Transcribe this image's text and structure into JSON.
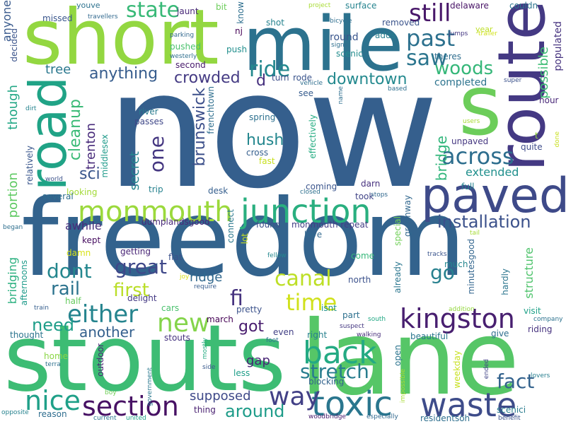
{
  "words": [
    {
      "text": "now",
      "c": "#355f8d"
    },
    {
      "text": "freedom",
      "c": "#33638d"
    },
    {
      "text": "stouts",
      "c": "#3dbc74"
    },
    {
      "text": "lane",
      "c": "#56c667"
    },
    {
      "text": "short",
      "c": "#93d741"
    },
    {
      "text": "mile",
      "c": "#2c728e"
    },
    {
      "text": "s",
      "c": "#6ccd5a"
    },
    {
      "text": "route",
      "c": "#443983"
    },
    {
      "text": "road",
      "c": "#20a386"
    },
    {
      "text": "paved",
      "c": "#3e4a89"
    },
    {
      "text": "junction",
      "c": "#29af7f"
    },
    {
      "text": "monmouth",
      "c": "#9bd93c"
    },
    {
      "text": "kingston",
      "c": "#481f70"
    },
    {
      "text": "toxic",
      "c": "#2a768e"
    },
    {
      "text": "waste",
      "c": "#3e4c8a"
    },
    {
      "text": "section",
      "c": "#471164"
    },
    {
      "text": "back",
      "c": "#24aa83"
    },
    {
      "text": "way",
      "c": "#424086"
    },
    {
      "text": "either",
      "c": "#25848e"
    },
    {
      "text": "nice",
      "c": "#1fa088"
    },
    {
      "text": "across",
      "c": "#2e6e8e"
    },
    {
      "text": "installation",
      "c": "#3b518b"
    },
    {
      "text": "new",
      "c": "#84d44b"
    },
    {
      "text": "time",
      "c": "#d0e11c"
    },
    {
      "text": "canal",
      "c": "#bddf26"
    },
    {
      "text": "still",
      "c": "#481769"
    },
    {
      "text": "state",
      "c": "#38b977"
    },
    {
      "text": "ride",
      "c": "#23888e"
    },
    {
      "text": "past",
      "c": "#2d718e"
    },
    {
      "text": "woods",
      "c": "#35b779"
    },
    {
      "text": "saw",
      "c": "#2b758e"
    },
    {
      "text": "stretch",
      "c": "#287d8e"
    },
    {
      "text": "dont",
      "c": "#24878e"
    },
    {
      "text": "rail",
      "c": "#2c738e"
    },
    {
      "text": "great",
      "c": "#3f4889"
    },
    {
      "text": "first",
      "c": "#bade28"
    },
    {
      "text": "go",
      "c": "#27808e"
    },
    {
      "text": "fi",
      "c": "#46337f"
    },
    {
      "text": "fact",
      "c": "#33628d"
    },
    {
      "text": "around",
      "c": "#1e9c89"
    },
    {
      "text": "need",
      "c": "#1f9e89"
    },
    {
      "text": "another",
      "c": "#34608d"
    },
    {
      "text": "got",
      "c": "#481c6e"
    },
    {
      "text": "downtown",
      "c": "#23898e"
    },
    {
      "text": "anything",
      "c": "#365c8d"
    },
    {
      "text": "crowded",
      "c": "#443a83"
    },
    {
      "text": "tree",
      "c": "#2a778e"
    },
    {
      "text": "hush",
      "c": "#24878e"
    },
    {
      "text": "one",
      "c": "#453781"
    },
    {
      "text": "sci",
      "c": "#39568c"
    },
    {
      "text": "supposed",
      "c": "#3e4989"
    },
    {
      "text": "gap",
      "c": "#482475"
    },
    {
      "text": "ridge",
      "c": "#31688e"
    },
    {
      "text": "awhile",
      "c": "#472d7b"
    },
    {
      "text": "extended",
      "c": "#21908d"
    },
    {
      "text": "completed",
      "c": "#2c738e"
    },
    {
      "text": "anyone",
      "c": "#38598c"
    },
    {
      "text": "youve",
      "c": "#2c718e"
    },
    {
      "text": "travellers",
      "c": "#31688e"
    },
    {
      "text": "surface",
      "c": "#25838e"
    },
    {
      "text": "delaware",
      "c": "#481467"
    },
    {
      "text": "couldn",
      "c": "#2b758e"
    },
    {
      "text": "bicycle",
      "c": "#2e6e8e"
    },
    {
      "text": "removed",
      "c": "#3a538b"
    },
    {
      "text": "adds",
      "c": "#277f8e"
    },
    {
      "text": "round",
      "c": "#39558c"
    },
    {
      "text": "jaunt",
      "c": "#482878"
    },
    {
      "text": "bit",
      "c": "#6ccd5a"
    },
    {
      "text": "nj",
      "c": "#440154"
    },
    {
      "text": "shot",
      "c": "#26828e"
    },
    {
      "text": "push",
      "c": "#218f8d"
    },
    {
      "text": "pushed",
      "c": "#4ac16d"
    },
    {
      "text": "second",
      "c": "#481a6c"
    },
    {
      "text": "turn",
      "c": "#3d4e8a"
    },
    {
      "text": "rode",
      "c": "#3a548c"
    },
    {
      "text": "scenic",
      "c": "#228c8d"
    },
    {
      "text": "theres",
      "c": "#2e6d8e"
    },
    {
      "text": "jumps",
      "c": "#453882"
    },
    {
      "text": "year",
      "c": "#bddf26"
    },
    {
      "text": "trailer",
      "c": "#d2e21b"
    },
    {
      "text": "populated",
      "c": "#46337f"
    },
    {
      "text": "possible",
      "c": "#3dbc74"
    },
    {
      "text": "missed",
      "c": "#39568c"
    },
    {
      "text": "decided",
      "c": "#3a538b"
    },
    {
      "text": "though",
      "c": "#22a785"
    },
    {
      "text": "portion",
      "c": "#5ec962"
    },
    {
      "text": "cleanup",
      "c": "#3aba76"
    },
    {
      "text": "trenton",
      "c": "#472a7a"
    },
    {
      "text": "brunswick",
      "c": "#3c4f8a"
    },
    {
      "text": "secret",
      "c": "#25848e"
    },
    {
      "text": "bridge",
      "c": "#30b57a"
    },
    {
      "text": "unpaved",
      "c": "#453781"
    },
    {
      "text": "full",
      "c": "#25838e"
    },
    {
      "text": "quite",
      "c": "#3e4c8a"
    },
    {
      "text": "hour",
      "c": "#482677"
    },
    {
      "text": "river",
      "c": "#297b8e"
    },
    {
      "text": "passes",
      "c": "#3f4788"
    },
    {
      "text": "spring",
      "c": "#2d708e"
    },
    {
      "text": "cross",
      "c": "#355f8d"
    },
    {
      "text": "fast",
      "c": "#c8e020"
    },
    {
      "text": "coming",
      "c": "#3a548c"
    },
    {
      "text": "darn",
      "c": "#46307e"
    },
    {
      "text": "took",
      "c": "#414487"
    },
    {
      "text": "trip",
      "c": "#26828e"
    },
    {
      "text": "desk",
      "c": "#345e8d"
    },
    {
      "text": "looking",
      "c": "#a2da37"
    },
    {
      "text": "several",
      "c": "#2e6e8e"
    },
    {
      "text": "dumplandsgood",
      "c": "#482878"
    },
    {
      "text": "found",
      "c": "#3b518b"
    },
    {
      "text": "monmouth repeat",
      "c": "#433e85"
    },
    {
      "text": "love",
      "c": "#31688e"
    },
    {
      "text": "kept",
      "c": "#470e61"
    },
    {
      "text": "damn",
      "c": "#d8e219"
    },
    {
      "text": "getting",
      "c": "#482576"
    },
    {
      "text": "flat",
      "c": "#3b518b"
    },
    {
      "text": "delight",
      "c": "#443983"
    },
    {
      "text": "half",
      "c": "#65cb5e"
    },
    {
      "text": "cars",
      "c": "#4ac16d"
    },
    {
      "text": "march",
      "c": "#440154"
    },
    {
      "text": "pretty",
      "c": "#3b528b"
    },
    {
      "text": "isnt",
      "c": "#20928c"
    },
    {
      "text": "part",
      "c": "#2d708e"
    },
    {
      "text": "come",
      "c": "#35b779"
    },
    {
      "text": "north",
      "c": "#3b518b"
    },
    {
      "text": "much",
      "c": "#24868e"
    },
    {
      "text": "minutesgood",
      "c": "#32658e"
    },
    {
      "text": "hardly",
      "c": "#2b758e"
    },
    {
      "text": "structure",
      "c": "#4ec36b"
    },
    {
      "text": "visit",
      "c": "#1fa188"
    },
    {
      "text": "riding",
      "c": "#46327e"
    },
    {
      "text": "give",
      "c": "#2e6e8e"
    },
    {
      "text": "beautiful",
      "c": "#2a768e"
    },
    {
      "text": "right",
      "c": "#27808e"
    },
    {
      "text": "even",
      "c": "#424086"
    },
    {
      "text": "stouts",
      "c": "#46337f"
    },
    {
      "text": "thought",
      "c": "#2b748e"
    },
    {
      "text": "home",
      "c": "#8bd646"
    },
    {
      "text": "blocking",
      "c": "#33638d"
    },
    {
      "text": "weekday",
      "c": "#c8e020"
    },
    {
      "text": "less",
      "c": "#1f9e89"
    },
    {
      "text": "thing",
      "c": "#481f70"
    },
    {
      "text": "reason",
      "c": "#2e6d8e"
    },
    {
      "text": "scenici",
      "c": "#287c8e"
    },
    {
      "text": "residentsoh",
      "c": "#2e6f8e"
    },
    {
      "text": "woodbridge",
      "c": "#481b6d"
    },
    {
      "text": "especially",
      "c": "#31688e"
    },
    {
      "text": "current",
      "c": "#2b758e"
    },
    {
      "text": "united",
      "c": "#1fa188"
    },
    {
      "text": "benefit",
      "c": "#3b528b"
    },
    {
      "text": "opposite",
      "c": "#26828e"
    },
    {
      "text": "lovers",
      "c": "#277e8e"
    },
    {
      "text": "outdoor",
      "c": "#482374"
    },
    {
      "text": "government",
      "c": "#2a788e"
    },
    {
      "text": "boy",
      "c": "#70cf57"
    },
    {
      "text": "terra",
      "c": "#2d718e"
    },
    {
      "text": "side",
      "c": "#38598c"
    },
    {
      "text": "mostly",
      "c": "#25ab82"
    },
    {
      "text": "foot",
      "c": "#2c718e"
    },
    {
      "text": "suspect",
      "c": "#453882"
    },
    {
      "text": "south",
      "c": "#22a884"
    },
    {
      "text": "walking",
      "c": "#472d7b"
    },
    {
      "text": "addition",
      "c": "#95d840"
    },
    {
      "text": "company",
      "c": "#2c728e"
    },
    {
      "text": "tracks",
      "c": "#3a548c"
    },
    {
      "text": "tail",
      "c": "#a5db36"
    },
    {
      "text": "fellow",
      "c": "#24878e"
    },
    {
      "text": "require",
      "c": "#365c8d"
    },
    {
      "text": "joy",
      "c": "#d8e219"
    },
    {
      "text": "train",
      "c": "#355e8d"
    },
    {
      "text": "began",
      "c": "#2e6f8e"
    },
    {
      "text": "afternoons",
      "c": "#1e9b8a"
    },
    {
      "text": "bridging",
      "c": "#2ab07f"
    },
    {
      "text": "world",
      "c": "#3b528b"
    },
    {
      "text": "relatively",
      "c": "#39568c"
    },
    {
      "text": "middlesex",
      "c": "#1f9a8a"
    },
    {
      "text": "dirt",
      "c": "#25838e"
    },
    {
      "text": "frenchtown",
      "c": "#2e6e8e"
    },
    {
      "text": "effectively",
      "c": "#25ac82"
    },
    {
      "text": "connect",
      "c": "#2a788e"
    },
    {
      "text": "lot",
      "c": "#c8e020"
    },
    {
      "text": "special",
      "c": "#70cf57"
    },
    {
      "text": "already",
      "c": "#2a768e"
    },
    {
      "text": "open",
      "c": "#2b748e"
    },
    {
      "text": "impossible",
      "c": "#a8db34"
    },
    {
      "text": "greenway",
      "c": "#31678e"
    },
    {
      "text": "closed",
      "c": "#2d708e"
    },
    {
      "text": "stops",
      "c": "#31688e"
    },
    {
      "text": "ended",
      "c": "#414487"
    },
    {
      "text": "d",
      "c": "#46307e"
    },
    {
      "text": "see",
      "c": "#365c8d"
    },
    {
      "text": "vehicle",
      "c": "#2e6e8e"
    },
    {
      "text": "name",
      "c": "#2e6e8e"
    },
    {
      "text": "based",
      "c": "#2e6e8e"
    },
    {
      "text": "super",
      "c": "#3b528b"
    },
    {
      "text": "users",
      "c": "#a8db34"
    },
    {
      "text": "t",
      "c": "#95d840"
    },
    {
      "text": "done",
      "c": "#c8e020"
    },
    {
      "text": "parking",
      "c": "#31688e"
    },
    {
      "text": "westerly",
      "c": "#2e6e8e"
    },
    {
      "text": "signs",
      "c": "#2e6e8e"
    },
    {
      "text": "project",
      "c": "#a8db34"
    },
    {
      "text": "know",
      "c": "#2e6e8e"
    }
  ]
}
